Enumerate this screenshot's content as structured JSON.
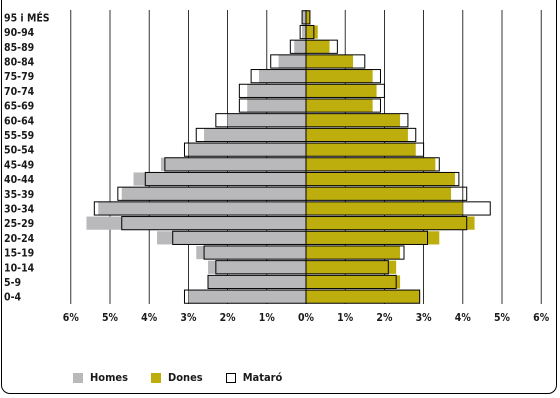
{
  "chart_data": {
    "type": "bar",
    "orientation": "horizontal",
    "subtype": "population-pyramid",
    "categories": [
      "95 i MÉS",
      "90-94",
      "85-89",
      "80-84",
      "75-79",
      "70-74",
      "65-69",
      "60-64",
      "55-59",
      "50-54",
      "45-49",
      "40-44",
      "35-39",
      "30-34",
      "25-29",
      "20-24",
      "15-19",
      "10-14",
      "5-9",
      "0-4"
    ],
    "series": [
      {
        "name": "Homes",
        "side": "left",
        "color": "#b9b9bb",
        "values": [
          0.1,
          0.1,
          0.3,
          0.7,
          1.2,
          1.5,
          1.5,
          2.0,
          2.6,
          3.0,
          3.7,
          4.4,
          4.7,
          5.3,
          5.6,
          3.8,
          2.8,
          2.5,
          2.5,
          3.0
        ]
      },
      {
        "name": "Dones",
        "side": "right",
        "color": "#bdae0e",
        "values": [
          0.1,
          0.3,
          0.6,
          1.2,
          1.7,
          1.8,
          1.7,
          2.4,
          2.6,
          2.8,
          3.3,
          3.8,
          3.7,
          4.0,
          4.3,
          3.4,
          2.4,
          2.3,
          2.4,
          2.9
        ]
      },
      {
        "name": "Mataró",
        "style": "outline",
        "color": "#000000",
        "left": [
          0.1,
          0.15,
          0.4,
          0.9,
          1.4,
          1.7,
          1.7,
          2.3,
          2.8,
          3.1,
          3.6,
          4.1,
          4.8,
          5.4,
          4.7,
          3.4,
          2.6,
          2.3,
          2.5,
          3.1
        ],
        "right": [
          0.1,
          0.2,
          0.8,
          1.5,
          1.9,
          2.0,
          1.9,
          2.6,
          2.8,
          3.0,
          3.4,
          3.9,
          4.1,
          4.7,
          4.1,
          3.1,
          2.5,
          2.1,
          2.3,
          2.9
        ]
      }
    ],
    "x_ticks": [
      "6%",
      "5%",
      "4%",
      "3%",
      "2%",
      "1%",
      "0%",
      "1%",
      "2%",
      "3%",
      "4%",
      "5%",
      "6%"
    ],
    "xlim": [
      -6,
      6
    ],
    "grid": true,
    "legend_position": "bottom-left"
  }
}
